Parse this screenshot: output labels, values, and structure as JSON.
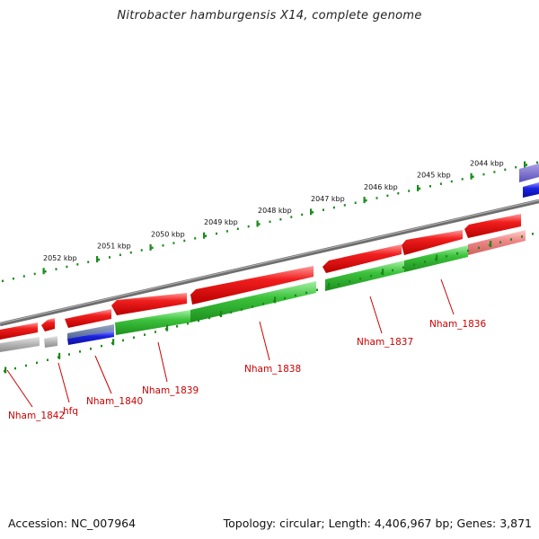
{
  "title": "Nitrobacter hamburgensis X14, complete genome",
  "footer": {
    "accession": "Accession: NC_007964",
    "summary": "Topology: circular; Length: 4,406,967 bp; Genes: 3,871"
  },
  "scale": {
    "unit": "kbp",
    "labels": [
      "2044 kbp",
      "2045 kbp",
      "2046 kbp",
      "2047 kbp",
      "2048 kbp",
      "2049 kbp",
      "2050 kbp",
      "2051 kbp",
      "2052 kbp"
    ]
  },
  "gene_labels": [
    "Nham_1836",
    "Nham_1837",
    "Nham_1838",
    "Nham_1839",
    "Nham_1840",
    "hfq",
    "Nham_1842"
  ],
  "colors": {
    "forward_cds": "#e8131a",
    "gene_track": "#2fba2f",
    "rna_track": "#1018d8",
    "pseudo_track": "#a8a8a8",
    "backbone": "#7a7a7a",
    "ticks": "#1a8a1a",
    "label_red": "#cc0000"
  }
}
